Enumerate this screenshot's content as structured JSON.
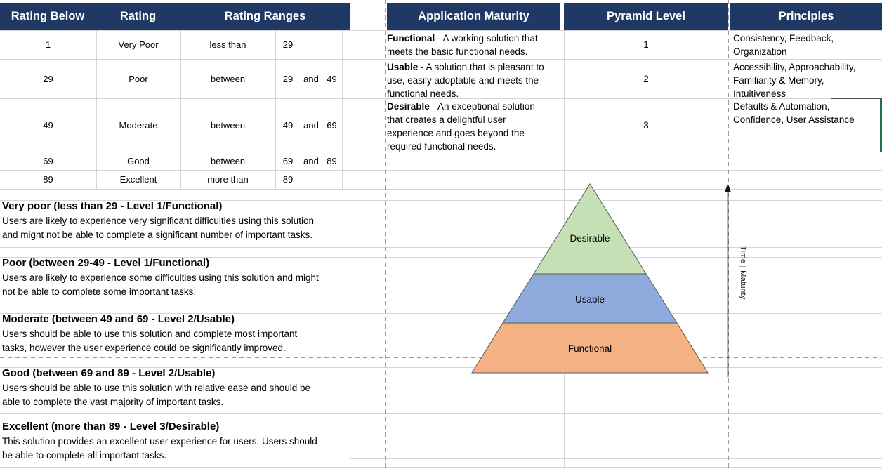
{
  "headers": {
    "rating_below": "Rating Below",
    "rating": "Rating",
    "rating_ranges": "Rating Ranges",
    "application_maturity": "Application Maturity",
    "pyramid_level": "Pyramid Level",
    "principles": "Principles"
  },
  "rating_table": {
    "rows": [
      {
        "below": "1",
        "rating": "Very Poor",
        "op": "less than",
        "from": "29",
        "conj": "",
        "to": ""
      },
      {
        "below": "29",
        "rating": "Poor",
        "op": "between",
        "from": "29",
        "conj": "and",
        "to": "49"
      },
      {
        "below": "49",
        "rating": "Moderate",
        "op": "between",
        "from": "49",
        "conj": "and",
        "to": "69"
      },
      {
        "below": "69",
        "rating": "Good",
        "op": "between",
        "from": "69",
        "conj": "and",
        "to": "89"
      },
      {
        "below": "89",
        "rating": "Excellent",
        "op": "more than",
        "from": "89",
        "conj": "",
        "to": ""
      }
    ]
  },
  "maturity": {
    "rows": [
      {
        "term": "Functional",
        "desc": " - A working solution that\nmeets the basic functional needs.",
        "level": "1",
        "principles": "Consistency, Feedback,\nOrganization"
      },
      {
        "term": "Usable",
        "desc": " - A solution that is pleasant to\nuse, easily adoptable and meets the\nfunctional needs.",
        "level": "2",
        "principles": "Accessibility, Approachability,\nFamiliarity & Memory,\nIntuitiveness"
      },
      {
        "term": "Desirable",
        "desc": " - An exceptional solution\nthat creates a delightful user\nexperience and goes beyond the\nrequired functional needs.",
        "level": "3",
        "principles": "Defaults & Automation,\nConfidence, User Assistance"
      }
    ]
  },
  "descriptions": [
    {
      "title": "Very poor (less than 29 - Level 1/Functional)",
      "body": "Users are likely to experience very significant difficulties using this solution\nand might not be able to complete a significant number of important tasks."
    },
    {
      "title": "Poor (between 29-49 - Level 1/Functional)",
      "body": "Users are likely to experience some difficulties using this solution and might\nnot be able to complete some important tasks."
    },
    {
      "title": "Moderate (between 49 and 69 - Level 2/Usable)",
      "body": "Users should be able to use this solution and complete most important\ntasks, however the user experience could be significantly improved."
    },
    {
      "title": "Good (between 69 and 89 - Level 2/Usable)",
      "body": "Users should be able to use this solution with relative ease and should be\nable to complete the vast majority of important tasks."
    },
    {
      "title": "Excellent (more than 89 - Level 3/Desirable)",
      "body": "This solution provides an excellent user experience for users. Users should\nbe able to complete all important tasks."
    }
  ],
  "pyramid": {
    "levels": [
      {
        "label": "Desirable",
        "color": "#C5E0B4"
      },
      {
        "label": "Usable",
        "color": "#8FAADC"
      },
      {
        "label": "Functional",
        "color": "#F4B183"
      }
    ],
    "axis_label": "Time  |  Maturity"
  },
  "colors": {
    "header_bg": "#1F3864",
    "selection_border": "#1F7244",
    "gridline": "#D6D6D6",
    "page_break": "#9B9B9B"
  }
}
